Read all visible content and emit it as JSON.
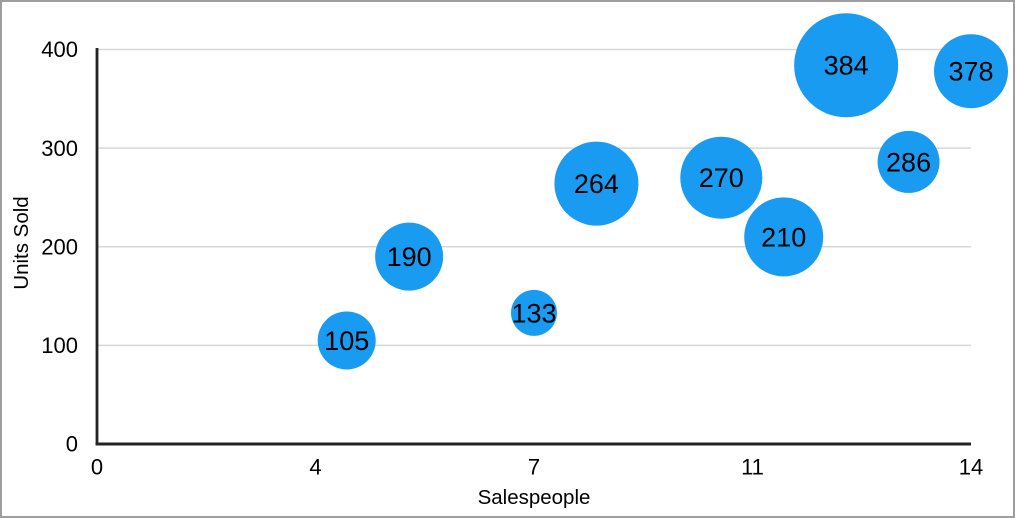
{
  "chart_data": {
    "type": "scatter",
    "variant": "bubble",
    "title": "",
    "xlabel": "Salespeople",
    "ylabel": "Units Sold",
    "xlim": [
      0,
      14
    ],
    "ylim": [
      0,
      400
    ],
    "grid": "horizontal-only",
    "legend": "none",
    "x_ticks": [
      {
        "pos": 0,
        "label": "0"
      },
      {
        "pos": 3.5,
        "label": "4"
      },
      {
        "pos": 7,
        "label": "7"
      },
      {
        "pos": 10.5,
        "label": "11"
      },
      {
        "pos": 14,
        "label": "14"
      }
    ],
    "y_ticks": [
      {
        "pos": 0,
        "label": "0"
      },
      {
        "pos": 100,
        "label": "100"
      },
      {
        "pos": 200,
        "label": "200"
      },
      {
        "pos": 300,
        "label": "300"
      },
      {
        "pos": 400,
        "label": "400"
      }
    ],
    "series": [
      {
        "name": "Units Sold",
        "color": "#189BF0",
        "points": [
          {
            "x": 4,
            "y": 105,
            "label": "105",
            "radius_px": 29
          },
          {
            "x": 5,
            "y": 190,
            "label": "190",
            "radius_px": 34
          },
          {
            "x": 7,
            "y": 133,
            "label": "133",
            "radius_px": 23
          },
          {
            "x": 8,
            "y": 264,
            "label": "264",
            "radius_px": 42
          },
          {
            "x": 10,
            "y": 270,
            "label": "270",
            "radius_px": 41
          },
          {
            "x": 11,
            "y": 210,
            "label": "210",
            "radius_px": 39.5
          },
          {
            "x": 12,
            "y": 384,
            "label": "384",
            "radius_px": 52
          },
          {
            "x": 13,
            "y": 286,
            "label": "286",
            "radius_px": 31
          },
          {
            "x": 14,
            "y": 378,
            "label": "378",
            "radius_px": 37
          }
        ]
      }
    ]
  },
  "colors": {
    "bubble": "#189BF0",
    "bubble_label": "#000000",
    "axis_line": "#242424",
    "grid_line": "#D7D7D7",
    "tick_label": "#000000",
    "axis_title": "#000000",
    "background": "#FFFFFF",
    "frame_border": "#9E9E9E"
  }
}
